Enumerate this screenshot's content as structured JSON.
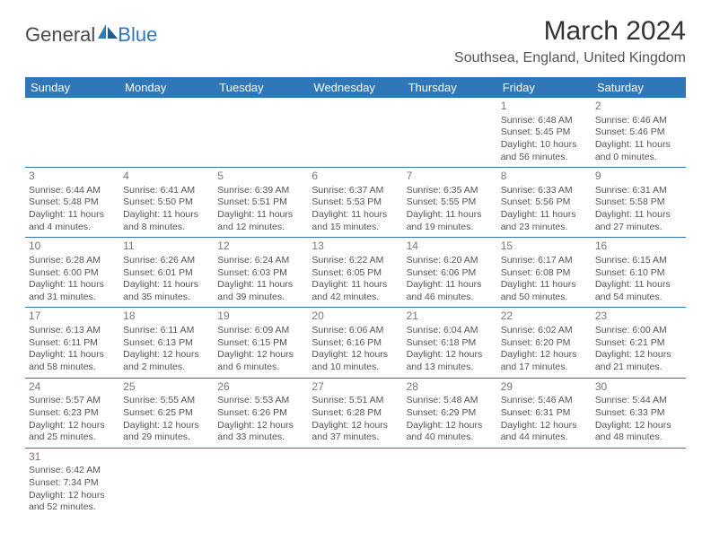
{
  "logo": {
    "general": "General",
    "blue": "Blue"
  },
  "title": "March 2024",
  "location": "Southsea, England, United Kingdom",
  "colors": {
    "header_bg": "#2f77b8",
    "header_text": "#ffffff",
    "border": "#2f77b8",
    "text": "#555555",
    "daynum": "#777777"
  },
  "weekdays": [
    "Sunday",
    "Monday",
    "Tuesday",
    "Wednesday",
    "Thursday",
    "Friday",
    "Saturday"
  ],
  "weeks": [
    [
      null,
      null,
      null,
      null,
      null,
      {
        "n": "1",
        "sr": "Sunrise: 6:48 AM",
        "ss": "Sunset: 5:45 PM",
        "dl": "Daylight: 10 hours and 56 minutes."
      },
      {
        "n": "2",
        "sr": "Sunrise: 6:46 AM",
        "ss": "Sunset: 5:46 PM",
        "dl": "Daylight: 11 hours and 0 minutes."
      }
    ],
    [
      {
        "n": "3",
        "sr": "Sunrise: 6:44 AM",
        "ss": "Sunset: 5:48 PM",
        "dl": "Daylight: 11 hours and 4 minutes."
      },
      {
        "n": "4",
        "sr": "Sunrise: 6:41 AM",
        "ss": "Sunset: 5:50 PM",
        "dl": "Daylight: 11 hours and 8 minutes."
      },
      {
        "n": "5",
        "sr": "Sunrise: 6:39 AM",
        "ss": "Sunset: 5:51 PM",
        "dl": "Daylight: 11 hours and 12 minutes."
      },
      {
        "n": "6",
        "sr": "Sunrise: 6:37 AM",
        "ss": "Sunset: 5:53 PM",
        "dl": "Daylight: 11 hours and 15 minutes."
      },
      {
        "n": "7",
        "sr": "Sunrise: 6:35 AM",
        "ss": "Sunset: 5:55 PM",
        "dl": "Daylight: 11 hours and 19 minutes."
      },
      {
        "n": "8",
        "sr": "Sunrise: 6:33 AM",
        "ss": "Sunset: 5:56 PM",
        "dl": "Daylight: 11 hours and 23 minutes."
      },
      {
        "n": "9",
        "sr": "Sunrise: 6:31 AM",
        "ss": "Sunset: 5:58 PM",
        "dl": "Daylight: 11 hours and 27 minutes."
      }
    ],
    [
      {
        "n": "10",
        "sr": "Sunrise: 6:28 AM",
        "ss": "Sunset: 6:00 PM",
        "dl": "Daylight: 11 hours and 31 minutes."
      },
      {
        "n": "11",
        "sr": "Sunrise: 6:26 AM",
        "ss": "Sunset: 6:01 PM",
        "dl": "Daylight: 11 hours and 35 minutes."
      },
      {
        "n": "12",
        "sr": "Sunrise: 6:24 AM",
        "ss": "Sunset: 6:03 PM",
        "dl": "Daylight: 11 hours and 39 minutes."
      },
      {
        "n": "13",
        "sr": "Sunrise: 6:22 AM",
        "ss": "Sunset: 6:05 PM",
        "dl": "Daylight: 11 hours and 42 minutes."
      },
      {
        "n": "14",
        "sr": "Sunrise: 6:20 AM",
        "ss": "Sunset: 6:06 PM",
        "dl": "Daylight: 11 hours and 46 minutes."
      },
      {
        "n": "15",
        "sr": "Sunrise: 6:17 AM",
        "ss": "Sunset: 6:08 PM",
        "dl": "Daylight: 11 hours and 50 minutes."
      },
      {
        "n": "16",
        "sr": "Sunrise: 6:15 AM",
        "ss": "Sunset: 6:10 PM",
        "dl": "Daylight: 11 hours and 54 minutes."
      }
    ],
    [
      {
        "n": "17",
        "sr": "Sunrise: 6:13 AM",
        "ss": "Sunset: 6:11 PM",
        "dl": "Daylight: 11 hours and 58 minutes."
      },
      {
        "n": "18",
        "sr": "Sunrise: 6:11 AM",
        "ss": "Sunset: 6:13 PM",
        "dl": "Daylight: 12 hours and 2 minutes."
      },
      {
        "n": "19",
        "sr": "Sunrise: 6:09 AM",
        "ss": "Sunset: 6:15 PM",
        "dl": "Daylight: 12 hours and 6 minutes."
      },
      {
        "n": "20",
        "sr": "Sunrise: 6:06 AM",
        "ss": "Sunset: 6:16 PM",
        "dl": "Daylight: 12 hours and 10 minutes."
      },
      {
        "n": "21",
        "sr": "Sunrise: 6:04 AM",
        "ss": "Sunset: 6:18 PM",
        "dl": "Daylight: 12 hours and 13 minutes."
      },
      {
        "n": "22",
        "sr": "Sunrise: 6:02 AM",
        "ss": "Sunset: 6:20 PM",
        "dl": "Daylight: 12 hours and 17 minutes."
      },
      {
        "n": "23",
        "sr": "Sunrise: 6:00 AM",
        "ss": "Sunset: 6:21 PM",
        "dl": "Daylight: 12 hours and 21 minutes."
      }
    ],
    [
      {
        "n": "24",
        "sr": "Sunrise: 5:57 AM",
        "ss": "Sunset: 6:23 PM",
        "dl": "Daylight: 12 hours and 25 minutes."
      },
      {
        "n": "25",
        "sr": "Sunrise: 5:55 AM",
        "ss": "Sunset: 6:25 PM",
        "dl": "Daylight: 12 hours and 29 minutes."
      },
      {
        "n": "26",
        "sr": "Sunrise: 5:53 AM",
        "ss": "Sunset: 6:26 PM",
        "dl": "Daylight: 12 hours and 33 minutes."
      },
      {
        "n": "27",
        "sr": "Sunrise: 5:51 AM",
        "ss": "Sunset: 6:28 PM",
        "dl": "Daylight: 12 hours and 37 minutes."
      },
      {
        "n": "28",
        "sr": "Sunrise: 5:48 AM",
        "ss": "Sunset: 6:29 PM",
        "dl": "Daylight: 12 hours and 40 minutes."
      },
      {
        "n": "29",
        "sr": "Sunrise: 5:46 AM",
        "ss": "Sunset: 6:31 PM",
        "dl": "Daylight: 12 hours and 44 minutes."
      },
      {
        "n": "30",
        "sr": "Sunrise: 5:44 AM",
        "ss": "Sunset: 6:33 PM",
        "dl": "Daylight: 12 hours and 48 minutes."
      }
    ],
    [
      {
        "n": "31",
        "sr": "Sunrise: 6:42 AM",
        "ss": "Sunset: 7:34 PM",
        "dl": "Daylight: 12 hours and 52 minutes."
      },
      null,
      null,
      null,
      null,
      null,
      null
    ]
  ]
}
